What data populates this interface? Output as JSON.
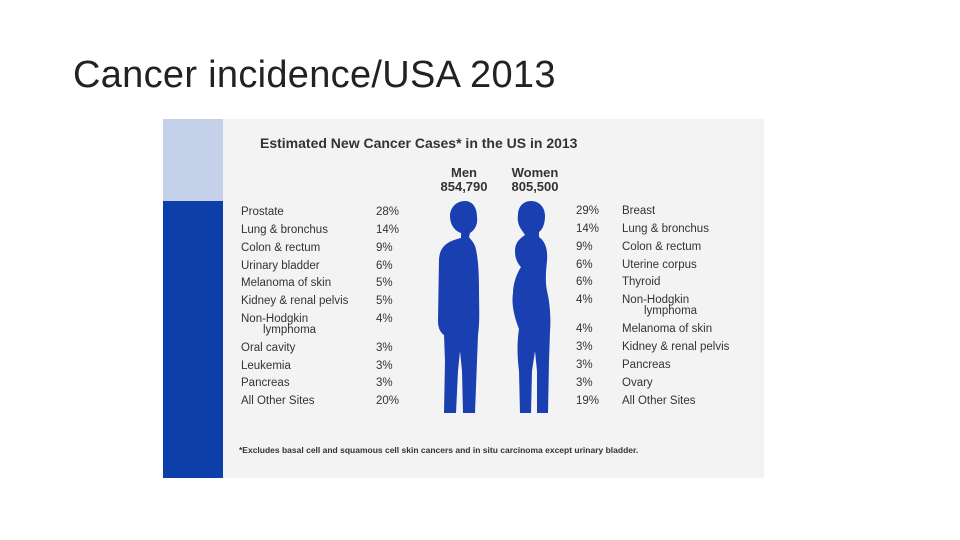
{
  "slide": {
    "title": "Cancer incidence/USA 2013"
  },
  "figure": {
    "title": "Estimated New Cancer Cases* in the US in 2013",
    "men": {
      "heading": "Men",
      "total": "854,790"
    },
    "women": {
      "heading": "Women",
      "total": "805,500"
    },
    "men_rows": [
      {
        "label": "Prostate",
        "pct": "28%"
      },
      {
        "label": "Lung & bronchus",
        "pct": "14%"
      },
      {
        "label": "Colon & rectum",
        "pct": "9%"
      },
      {
        "label": "Urinary bladder",
        "pct": "6%"
      },
      {
        "label": "Melanoma of skin",
        "pct": "5%"
      },
      {
        "label": "Kidney & renal pelvis",
        "pct": "5%"
      },
      {
        "label": "Non-Hodgkin",
        "label2": "lymphoma",
        "pct": "4%"
      },
      {
        "label": "Oral cavity",
        "pct": "3%"
      },
      {
        "label": "Leukemia",
        "pct": "3%"
      },
      {
        "label": "Pancreas",
        "pct": "3%"
      },
      {
        "label": "All Other Sites",
        "pct": "20%"
      }
    ],
    "women_rows": [
      {
        "label": "Breast",
        "pct": "29%"
      },
      {
        "label": "Lung & bronchus",
        "pct": "14%"
      },
      {
        "label": "Colon & rectum",
        "pct": "9%"
      },
      {
        "label": "Uterine corpus",
        "pct": "6%"
      },
      {
        "label": "Thyroid",
        "pct": "6%"
      },
      {
        "label": "Non-Hodgkin",
        "label2": "lymphoma",
        "pct": "4%"
      },
      {
        "label": "Melanoma of skin",
        "pct": "4%"
      },
      {
        "label": "Kidney & renal pelvis",
        "pct": "3%"
      },
      {
        "label": "Pancreas",
        "pct": "3%"
      },
      {
        "label": "Ovary",
        "pct": "3%"
      },
      {
        "label": "All Other Sites",
        "pct": "19%"
      }
    ],
    "footnote": "*Excludes basal cell and squamous cell skin cancers and in situ carcinoma except urinary bladder."
  },
  "colors": {
    "accent": "#0c3fa9",
    "accent_light": "#c5d1e9",
    "silhouette": "#1a3fb0"
  }
}
